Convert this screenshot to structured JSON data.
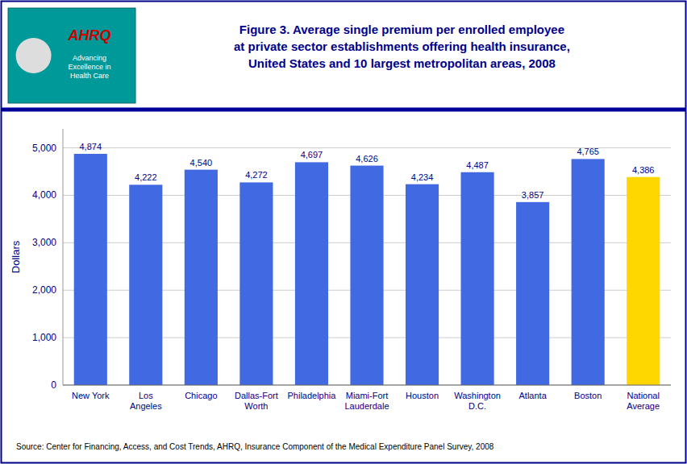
{
  "chart_data": {
    "type": "bar",
    "title": "Figure 3. Average single premium per enrolled employee\nat private sector establishments offering health insurance,\nUnited States and 10 largest metropolitan areas, 2008",
    "y_label": "Dollars",
    "categories": [
      "New York",
      "Los\nAngeles",
      "Chicago",
      "Dallas-Fort\nWorth",
      "Philadelphia",
      "Miami-Fort\nLauderdale",
      "Houston",
      "Washington\nD.C.",
      "Atlanta",
      "Boston",
      "National\nAverage"
    ],
    "values": [
      4874,
      4222,
      4540,
      4272,
      4697,
      4626,
      4234,
      4487,
      3857,
      4765,
      4386
    ],
    "value_labels": [
      "4,874",
      "4,222",
      "4,540",
      "4,272",
      "4,697",
      "4,626",
      "4,234",
      "4,487",
      "3,857",
      "4,765",
      "4,386"
    ],
    "data_labels": true,
    "colors": [
      "#4169E1",
      "#4169E1",
      "#4169E1",
      "#4169E1",
      "#4169E1",
      "#4169E1",
      "#4169E1",
      "#4169E1",
      "#4169E1",
      "#4169E1",
      "#FFD700"
    ],
    "ylim": [
      0,
      5400
    ],
    "yticks": [
      0,
      {
        "value": 1000,
        "label": "1,000"
      },
      {
        "value": 2000,
        "label": "2,000"
      },
      {
        "value": 3000,
        "label": "3,000"
      },
      {
        "value": 4000,
        "label": "4,000"
      },
      {
        "value": 5000,
        "label": "5,000"
      }
    ],
    "grid": true,
    "annotations": [
      "AHRQ",
      "Advancing\nExcellence in\nHealth Care"
    ],
    "source": "Source: Center for Financing, Access, and Cost Trends, AHRQ, Insurance Component of the Medical Expenditure Panel Survey, 2008"
  }
}
